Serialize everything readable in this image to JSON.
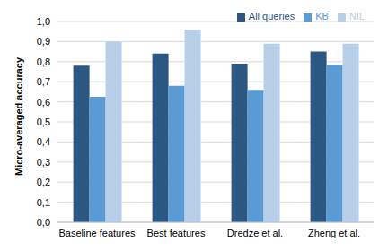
{
  "chart_data": {
    "type": "bar",
    "y_label": "Micro-averaged accuracy",
    "categories": [
      "Baseline features",
      "Best features",
      "Dredze et al.",
      "Zheng et al."
    ],
    "series": [
      {
        "name": "All queries",
        "color": "#2c5782",
        "values": [
          0.78,
          0.84,
          0.79,
          0.85
        ]
      },
      {
        "name": "KB",
        "color": "#5b9bd5",
        "values": [
          0.625,
          0.68,
          0.66,
          0.785
        ]
      },
      {
        "name": "NIL",
        "color": "#b7cfe9",
        "values": [
          0.9,
          0.96,
          0.89,
          0.89
        ]
      }
    ],
    "ylim": [
      0,
      1
    ],
    "yticks": [
      {
        "value": 0,
        "label": "0,0"
      },
      {
        "value": 0.1,
        "label": "0,1"
      },
      {
        "value": 0.2,
        "label": "0,2"
      },
      {
        "value": 0.3,
        "label": "0,3"
      },
      {
        "value": 0.4,
        "label": "0,4"
      },
      {
        "value": 0.5,
        "label": "0,5"
      },
      {
        "value": 0.6,
        "label": "0,6"
      },
      {
        "value": 0.7,
        "label": "0,7"
      },
      {
        "value": 0.8,
        "label": "0,8"
      },
      {
        "value": 0.9,
        "label": "0,9"
      },
      {
        "value": 1,
        "label": "1,0"
      }
    ],
    "grid": true,
    "legend": "top-right"
  }
}
